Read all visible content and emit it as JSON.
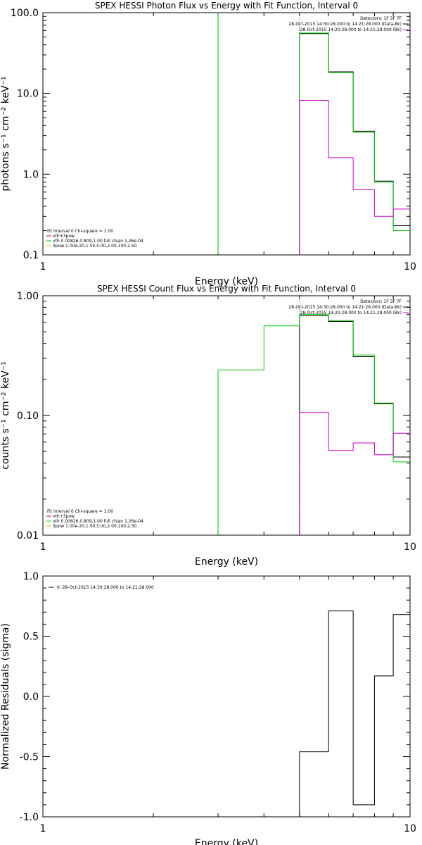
{
  "chart_data": [
    {
      "type": "line",
      "title": "SPEX HESSI Photon Flux vs Energy with Fit Function, Interval 0",
      "xlabel": "Energy (keV)",
      "ylabel": "photons s⁻¹ cm⁻² keV⁻¹",
      "xscale": "log",
      "yscale": "log",
      "xlim": [
        1,
        10
      ],
      "ylim": [
        0.1,
        100
      ],
      "xticks": [
        1,
        10
      ],
      "xtick_labels": [
        "1",
        "10"
      ],
      "yticks": [
        0.1,
        1,
        10,
        100
      ],
      "ytick_labels": [
        "0.1",
        "1.0",
        "10.0",
        "100.0"
      ],
      "vlines": [
        {
          "x": 3.0,
          "color": "#00cc00",
          "style": "solid"
        },
        {
          "x": 3.0,
          "color": "#00cc00",
          "style": "dotted",
          "top_only": true
        },
        {
          "x": 5.0,
          "color": "#cc00cc",
          "style": "dotted"
        }
      ],
      "series": [
        {
          "name": "",
          "color": "#000000",
          "edges": [
            5.0,
            6.0,
            7.0,
            8.0,
            9.0,
            10.0
          ],
          "values": [
            55,
            18.5,
            3.4,
            0.82,
            0.23
          ]
        },
        {
          "name": "vth 0.00826,0.809,1.00  full chian 1.26e-04",
          "color": "#00cc00",
          "edges": [
            5.0,
            6.0,
            7.0,
            8.0,
            9.0,
            10.0
          ],
          "values": [
            56,
            18.0,
            3.3,
            0.8,
            0.2
          ]
        },
        {
          "name": "3pow 1.00e-20,1.50,5.00,2.00,100,2.50",
          "color": "#cc00cc",
          "edges": [
            5.0,
            6.0,
            7.0,
            8.0,
            9.0,
            10.0
          ],
          "values": [
            8.2,
            1.6,
            0.64,
            0.3,
            0.37
          ]
        }
      ],
      "legend_top": [
        "Detectors: 1F 3F 7F",
        "28-Oct-2015 14:30:28.000 to 14:21:28.000 (Data-Bk)",
        "28-Oct-2015 14:20:28.000 to 14:21:28.000 (Bk)"
      ],
      "legend_top_colors": [
        "",
        "#000000",
        "#cc00cc"
      ],
      "legend_bottom": [
        "Fit Interval 0   Chi-square = 1.00",
        "vth+3pow",
        "vth 0.00826,0.809,1.00  full chian 1.26e-04",
        "3pow 1.00e-20,1.50,5.00,2.00,100,2.50"
      ],
      "legend_bottom_colors": [
        "",
        "#cc0000",
        "#00cc00",
        "#cccc00"
      ]
    },
    {
      "type": "line",
      "title": "SPEX HESSI Count Flux vs Energy with Fit Function, Interval 0",
      "xlabel": "Energy (keV)",
      "ylabel": "counts s⁻¹ cm⁻² keV⁻¹",
      "xscale": "log",
      "yscale": "log",
      "xlim": [
        1,
        10
      ],
      "ylim": [
        0.01,
        1
      ],
      "xticks": [
        1,
        10
      ],
      "xtick_labels": [
        "1",
        "10"
      ],
      "yticks": [
        0.01,
        0.1,
        1
      ],
      "ytick_labels": [
        "0.01",
        "0.10",
        "1.00"
      ],
      "vlines": [
        {
          "x": 5.0,
          "color": "#cc00cc",
          "style": "dotted"
        }
      ],
      "series": [
        {
          "name": "",
          "color": "#000000",
          "edges": [
            5.0,
            6.0,
            7.0,
            8.0,
            9.0,
            10.0
          ],
          "values": [
            0.68,
            0.61,
            0.31,
            0.125,
            0.045
          ]
        },
        {
          "name": "vth 0.00826,0.809,1.00  full chian 1.26e-04",
          "color": "#00cc00",
          "edges": [
            3.0,
            4.0,
            5.0,
            6.0,
            7.0,
            8.0,
            9.0,
            10.0
          ],
          "values": [
            0.24,
            0.56,
            0.7,
            0.62,
            0.32,
            0.127,
            0.041
          ]
        },
        {
          "name": "3pow 1.00e-20,1.50,5.00,2.00,100,2.50",
          "color": "#cc00cc",
          "edges": [
            5.0,
            6.0,
            7.0,
            8.0,
            9.0,
            10.0
          ],
          "values": [
            0.106,
            0.051,
            0.059,
            0.047,
            0.071
          ]
        }
      ],
      "legend_top": [
        "Detectors: 1F 3F 7F",
        "28-Oct-2015 14:30:28.000 to 14:21:28.000 (Data-Bk)",
        "28-Oct-2015 14:20:28.000 to 14:21:28.000 (Bk)"
      ],
      "legend_top_colors": [
        "",
        "#000000",
        "#cc00cc"
      ],
      "legend_bottom": [
        "Fit Interval 0   Chi-square = 1.00",
        "vth+3pow",
        "vth 0.00826,0.809,1.00  full chian 1.26e-04",
        "3pow 1.00e-20,1.50,5.00,2.00,100,2.50"
      ],
      "legend_bottom_colors": [
        "",
        "#cc0000",
        "#00cc00",
        "#cccc00"
      ]
    },
    {
      "type": "line",
      "title": "",
      "xlabel": "Energy (keV)",
      "ylabel": "Normalized Residuals (sigma)",
      "xscale": "log",
      "yscale": "linear",
      "xlim": [
        1,
        10
      ],
      "ylim": [
        -1.0,
        1.0
      ],
      "xticks": [
        1,
        10
      ],
      "xtick_labels": [
        "1",
        "10"
      ],
      "yticks": [
        -1.0,
        -0.5,
        0.0,
        0.5,
        1.0
      ],
      "ytick_labels": [
        "-1.0",
        "-0.5",
        "0.0",
        "0.5",
        "1.0"
      ],
      "series": [
        {
          "name": "0. 28-Oct-2015 14:30:28.000 to 14:21:28.000",
          "color": "#000000",
          "edges": [
            5.0,
            6.0,
            7.0,
            8.0,
            9.0,
            10.0
          ],
          "values": [
            -0.46,
            0.71,
            -0.9,
            0.17,
            0.68
          ]
        }
      ],
      "legend_top": [
        "0. 28-Oct-2015 14:30:28.000 to 14:21:28.000"
      ]
    }
  ]
}
